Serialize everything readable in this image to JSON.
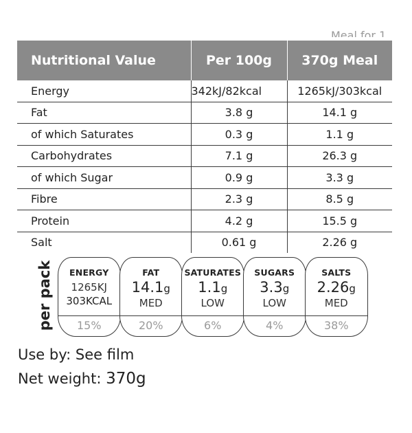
{
  "top_cut_text": "Meal for 1",
  "table": {
    "headers": [
      "Nutritional Value",
      "Per 100g",
      "370g Meal"
    ],
    "rows": [
      {
        "label": "Energy",
        "per100": "342kJ/82kcal",
        "meal": "1265kJ/303kcal"
      },
      {
        "label": "Fat",
        "per100": "3.8 g",
        "meal": "14.1 g"
      },
      {
        "label": "of which Saturates",
        "per100": "0.3 g",
        "meal": "1.1 g"
      },
      {
        "label": "Carbohydrates",
        "per100": "7.1 g",
        "meal": "26.3 g"
      },
      {
        "label": "of which Sugar",
        "per100": "0.9 g",
        "meal": "3.3 g"
      },
      {
        "label": "Fibre",
        "per100": "2.3 g",
        "meal": "8.5 g"
      },
      {
        "label": "Protein",
        "per100": "4.2 g",
        "meal": "15.5 g"
      },
      {
        "label": "Salt",
        "per100": "0.61 g",
        "meal": "2.26 g"
      }
    ]
  },
  "per_pack_label": "per pack",
  "gda": {
    "energy": {
      "name": "ENERGY",
      "kj": "1265KJ",
      "kcal": "303KCAL",
      "percent": "15%"
    },
    "fat": {
      "name": "FAT",
      "value": "14.1",
      "unit": "g",
      "level": "MED",
      "percent": "20%"
    },
    "saturates": {
      "name": "SATURATES",
      "value": "1.1",
      "unit": "g",
      "level": "LOW",
      "percent": "6%"
    },
    "sugars": {
      "name": "SUGARS",
      "value": "3.3",
      "unit": "g",
      "level": "LOW",
      "percent": "4%"
    },
    "salts": {
      "name": "SALTS",
      "value": "2.26",
      "unit": "g",
      "level": "MED",
      "percent": "38%"
    }
  },
  "use_by": {
    "label": "Use by:",
    "value": "See film"
  },
  "net_weight": {
    "label": "Net weight:",
    "value": "370g"
  },
  "colors": {
    "header_bg": "#8a8a8a",
    "header_text": "#ffffff",
    "text": "#222222",
    "percent_text": "#9a9a9a"
  }
}
